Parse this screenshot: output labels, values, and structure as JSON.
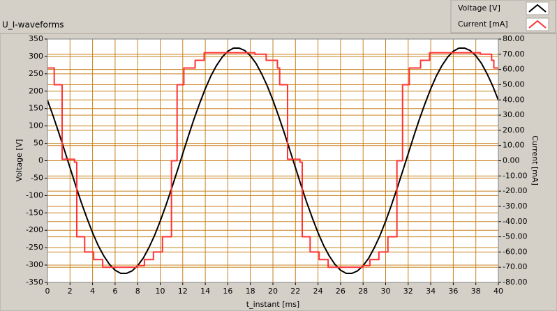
{
  "chart_data": {
    "type": "line",
    "title": "U_I-waveforms",
    "x_label": "t_instant [ms]",
    "y_label": "Voltage [V]",
    "y2_label": "Current [mA]",
    "xlim": [
      0,
      40
    ],
    "xticks": [
      0,
      2,
      4,
      6,
      8,
      10,
      12,
      14,
      16,
      18,
      20,
      22,
      24,
      26,
      28,
      30,
      32,
      34,
      36,
      38,
      40
    ],
    "ylim": [
      -350,
      350
    ],
    "yticks": [
      -350,
      -300,
      -250,
      -200,
      -150,
      -100,
      -50,
      0,
      50,
      100,
      150,
      200,
      250,
      300,
      350
    ],
    "y2lim": [
      -80,
      80
    ],
    "y2ticks": [
      {
        "value": -80,
        "label": "-80.00"
      },
      {
        "value": -70,
        "label": "-70.00"
      },
      {
        "value": -60,
        "label": "-60.00"
      },
      {
        "value": -50,
        "label": "-50.00"
      },
      {
        "value": -40,
        "label": "-40.00"
      },
      {
        "value": -30,
        "label": "-30.00"
      },
      {
        "value": -20,
        "label": "-20.00"
      },
      {
        "value": -10,
        "label": "-10.00"
      },
      {
        "value": 0,
        "label": "0.00"
      },
      {
        "value": 10,
        "label": "10.00"
      },
      {
        "value": 20,
        "label": "20.00"
      },
      {
        "value": 30,
        "label": "30.00"
      },
      {
        "value": 40,
        "label": "40.00"
      },
      {
        "value": 50,
        "label": "50.00"
      },
      {
        "value": 60,
        "label": "60.00"
      },
      {
        "value": 70,
        "label": "70.00"
      },
      {
        "value": 80,
        "label": "80.00"
      }
    ],
    "grid": true,
    "grid_color": "#c8821e",
    "legend": "top-right",
    "series": [
      {
        "name": "Voltage [V]",
        "color": "#000000",
        "x": [
          0,
          0.5,
          1,
          1.5,
          2,
          2.5,
          3,
          3.5,
          4,
          4.5,
          5,
          5.5,
          6,
          6.5,
          7,
          7.5,
          8,
          8.5,
          9,
          9.5,
          10,
          10.5,
          11,
          11.5,
          12,
          12.5,
          13,
          13.5,
          14,
          14.5,
          15,
          15.5,
          16,
          16.5,
          17,
          17.5,
          18,
          18.5,
          19,
          19.5,
          20,
          20.5,
          21,
          21.5,
          22,
          22.5,
          23,
          23.5,
          24,
          24.5,
          25,
          25.5,
          26,
          26.5,
          27,
          27.5,
          28,
          28.5,
          29,
          29.5,
          30,
          30.5,
          31,
          31.5,
          32,
          32.5,
          33,
          33.5,
          34,
          34.5,
          35,
          35.5,
          36,
          36.5,
          37,
          37.5,
          38,
          38.5,
          39,
          39.5,
          40
        ],
        "values": [
          174,
          129,
          81,
          31,
          -20,
          -71,
          -120,
          -165,
          -207,
          -244,
          -274,
          -298,
          -315,
          -324,
          -324,
          -317,
          -302,
          -280,
          -250,
          -215,
          -174,
          -129,
          -81,
          -31,
          20,
          71,
          120,
          165,
          207,
          244,
          274,
          298,
          315,
          324,
          324,
          317,
          302,
          280,
          250,
          215,
          174,
          129,
          81,
          31,
          -20,
          -71,
          -120,
          -165,
          -207,
          -244,
          -274,
          -298,
          -315,
          -324,
          -324,
          -317,
          -302,
          -280,
          -250,
          -215,
          -174,
          -129,
          -81,
          -31,
          20,
          71,
          120,
          165,
          207,
          244,
          274,
          298,
          315,
          324,
          324,
          317,
          302,
          280,
          250,
          215,
          174
        ]
      },
      {
        "name": "Current [mA]",
        "color": "#ff3333",
        "axis": "y2",
        "x": [
          0,
          0.6,
          0.6,
          1.3,
          1.3,
          2.4,
          2.4,
          2.6,
          2.6,
          3.3,
          3.3,
          4.1,
          4.1,
          4.9,
          4.9,
          8.0,
          8.0,
          8.6,
          8.6,
          9.4,
          9.4,
          10.2,
          10.2,
          11.0,
          11.0,
          11.5,
          11.5,
          12.1,
          12.1,
          13.1,
          13.1,
          13.9,
          13.9,
          18.4,
          18.4,
          19.4,
          19.4,
          20.4,
          20.4,
          20.6,
          20.6,
          21.3,
          21.3,
          22.4,
          22.4,
          22.6,
          22.6,
          23.3,
          23.3,
          24.1,
          24.1,
          24.9,
          24.9,
          28.0,
          28.0,
          28.6,
          28.6,
          29.4,
          29.4,
          30.2,
          30.2,
          31.0,
          31.0,
          31.5,
          31.5,
          32.1,
          32.1,
          33.1,
          33.1,
          33.9,
          33.9,
          38.4,
          38.4,
          39.4,
          39.4,
          39.6,
          39.6,
          40
        ],
        "values": [
          61,
          61,
          50,
          50,
          1,
          1,
          -1,
          -1,
          -50,
          -50,
          -60,
          -60,
          -65,
          -65,
          -70,
          -70,
          -69,
          -69,
          -65,
          -65,
          -60,
          -60,
          -50,
          -50,
          0,
          0,
          50,
          50,
          61,
          61,
          66,
          66,
          71,
          71,
          70,
          70,
          66,
          66,
          61,
          61,
          50,
          50,
          1,
          1,
          -1,
          -1,
          -50,
          -50,
          -60,
          -60,
          -65,
          -65,
          -70,
          -70,
          -69,
          -69,
          -65,
          -65,
          -60,
          -60,
          -50,
          -50,
          0,
          0,
          50,
          50,
          61,
          61,
          66,
          66,
          71,
          71,
          70,
          70,
          66,
          66,
          61,
          61
        ]
      }
    ]
  }
}
